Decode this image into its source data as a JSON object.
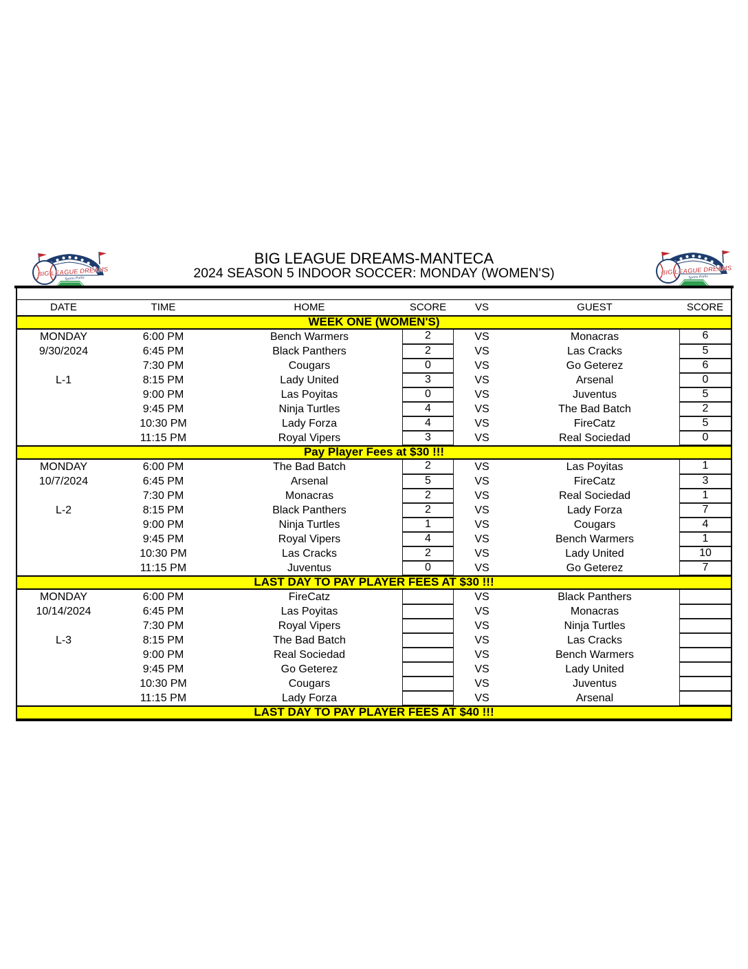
{
  "header": {
    "title": "BIG LEAGUE DREAMS-MANTECA",
    "subtitle": "2024 SEASON 5 INDOOR SOCCER: MONDAY (WOMEN'S)"
  },
  "logo": {
    "name": "Big League Dreams stadium logo",
    "text": "BIG LEAGUE DREAMS",
    "subtext": "Sports Parks",
    "colors": {
      "navy": "#1d3c6e",
      "red": "#c3272b",
      "green": "#2e9e4f",
      "white": "#ffffff"
    }
  },
  "colors": {
    "banner_bg": "#FFFF00",
    "banner_text": "#000000",
    "border": "#000000",
    "page_bg": "#FFFFFF"
  },
  "table": {
    "headers": [
      "DATE",
      "TIME",
      "HOME",
      "SCORE",
      "VS",
      "GUEST",
      "SCORE"
    ],
    "vs_label": "VS",
    "weeks": [
      {
        "header_banner": "WEEK ONE (WOMEN'S)",
        "day": "MONDAY",
        "date": "9/30/2024",
        "league": "L-1",
        "games": [
          {
            "time": "6:00 PM",
            "home": "Bench Warmers",
            "home_score": "2",
            "guest": "Monacras",
            "guest_score": "6"
          },
          {
            "time": "6:45 PM",
            "home": "Black Panthers",
            "home_score": "2",
            "guest": "Las Cracks",
            "guest_score": "5"
          },
          {
            "time": "7:30 PM",
            "home": "Cougars",
            "home_score": "0",
            "guest": "Go Geterez",
            "guest_score": "6"
          },
          {
            "time": "8:15 PM",
            "home": "Lady United",
            "home_score": "3",
            "guest": "Arsenal",
            "guest_score": "0"
          },
          {
            "time": "9:00 PM",
            "home": "Las Poyitas",
            "home_score": "0",
            "guest": "Juventus",
            "guest_score": "5"
          },
          {
            "time": "9:45 PM",
            "home": "Ninja Turtles",
            "home_score": "4",
            "guest": "The Bad Batch",
            "guest_score": "2"
          },
          {
            "time": "10:30 PM",
            "home": "Lady Forza",
            "home_score": "4",
            "guest": "FireCatz",
            "guest_score": "5"
          },
          {
            "time": "11:15 PM",
            "home": "Royal Vipers",
            "home_score": "3",
            "guest": "Real Sociedad",
            "guest_score": "0"
          }
        ],
        "footer_banner": "Pay Player Fees at $30 !!!"
      },
      {
        "day": "MONDAY",
        "date": "10/7/2024",
        "league": "L-2",
        "games": [
          {
            "time": "6:00 PM",
            "home": "The Bad Batch",
            "home_score": "2",
            "guest": "Las Poyitas",
            "guest_score": "1"
          },
          {
            "time": "6:45 PM",
            "home": "Arsenal",
            "home_score": "5",
            "guest": "FireCatz",
            "guest_score": "3"
          },
          {
            "time": "7:30 PM",
            "home": "Monacras",
            "home_score": "2",
            "guest": "Real Sociedad",
            "guest_score": "1"
          },
          {
            "time": "8:15 PM",
            "home": "Black Panthers",
            "home_score": "2",
            "guest": "Lady Forza",
            "guest_score": "7"
          },
          {
            "time": "9:00 PM",
            "home": "Ninja Turtles",
            "home_score": "1",
            "guest": "Cougars",
            "guest_score": "4"
          },
          {
            "time": "9:45 PM",
            "home": "Royal Vipers",
            "home_score": "4",
            "guest": "Bench Warmers",
            "guest_score": "1"
          },
          {
            "time": "10:30 PM",
            "home": "Las Cracks",
            "home_score": "2",
            "guest": "Lady United",
            "guest_score": "10"
          },
          {
            "time": "11:15 PM",
            "home": "Juventus",
            "home_score": "0",
            "guest": "Go Geterez",
            "guest_score": "7"
          }
        ],
        "footer_banner": "LAST DAY TO PAY PLAYER FEES AT $30 !!!"
      },
      {
        "day": "MONDAY",
        "date": "10/14/2024",
        "league": "L-3",
        "games": [
          {
            "time": "6:00 PM",
            "home": "FireCatz",
            "home_score": "",
            "guest": "Black Panthers",
            "guest_score": ""
          },
          {
            "time": "6:45 PM",
            "home": "Las Poyitas",
            "home_score": "",
            "guest": "Monacras",
            "guest_score": ""
          },
          {
            "time": "7:30 PM",
            "home": "Royal Vipers",
            "home_score": "",
            "guest": "Ninja Turtles",
            "guest_score": ""
          },
          {
            "time": "8:15 PM",
            "home": "The Bad Batch",
            "home_score": "",
            "guest": "Las Cracks",
            "guest_score": ""
          },
          {
            "time": "9:00 PM",
            "home": "Real Sociedad",
            "home_score": "",
            "guest": "Bench Warmers",
            "guest_score": ""
          },
          {
            "time": "9:45 PM",
            "home": "Go Geterez",
            "home_score": "",
            "guest": "Lady United",
            "guest_score": ""
          },
          {
            "time": "10:30 PM",
            "home": "Cougars",
            "home_score": "",
            "guest": "Juventus",
            "guest_score": ""
          },
          {
            "time": "11:15 PM",
            "home": "Lady Forza",
            "home_score": "",
            "guest": "Arsenal",
            "guest_score": ""
          }
        ],
        "footer_banner": "LAST DAY TO PAY PLAYER FEES AT $40 !!!"
      }
    ]
  }
}
